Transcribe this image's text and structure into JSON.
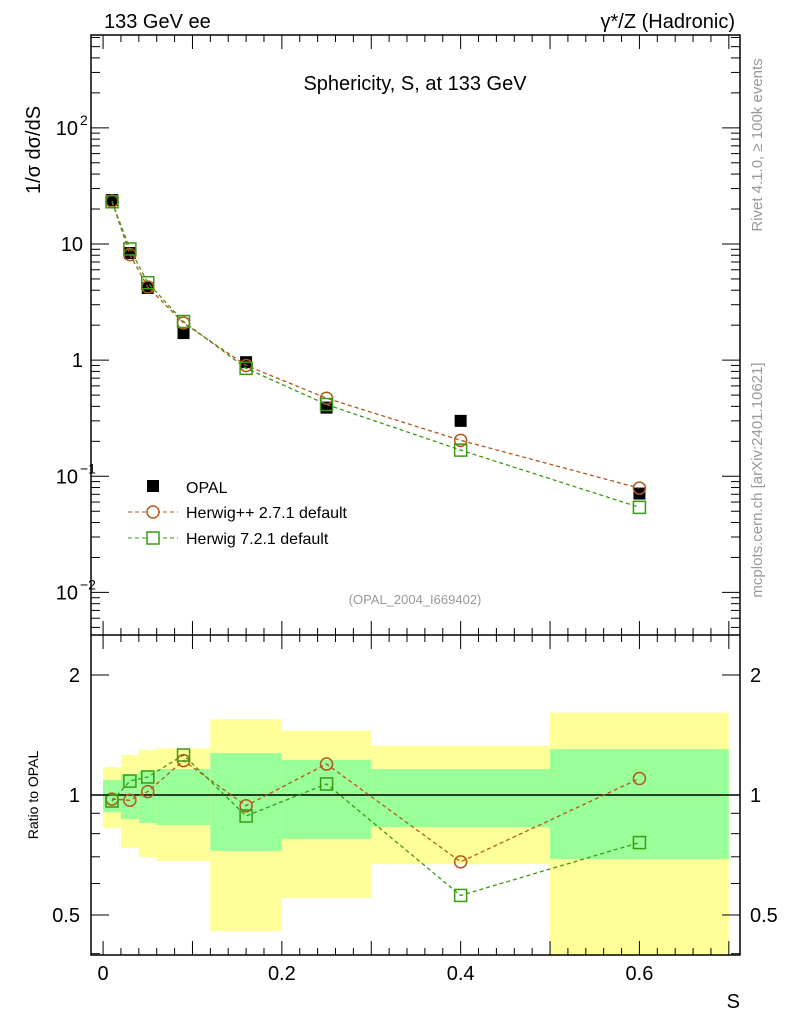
{
  "header": {
    "left": "133 GeV ee",
    "right": "γ*/Z (Hadronic)"
  },
  "side_labels": {
    "rivet": "Rivet 4.1.0, ≥ 100k events",
    "mcplots": "mcplots.cern.ch [arXiv:2401.10621]"
  },
  "chart_data": [
    {
      "type": "line",
      "title": "Sphericity, S, at 133 GeV",
      "xlabel": "S",
      "ylabel": "1/σ  dσ/dS",
      "yscale": "log",
      "xlim": [
        -0.0135,
        0.7125
      ],
      "ylim": [
        0.0043,
        630
      ],
      "yticks": [
        {
          "v": 0.01,
          "label": "10",
          "exp": "−2"
        },
        {
          "v": 0.1,
          "label": "10",
          "exp": "−1"
        },
        {
          "v": 1,
          "label": "1"
        },
        {
          "v": 10,
          "label": "10"
        },
        {
          "v": 100,
          "label": "10",
          "exp": "2"
        }
      ],
      "annotation": "(OPAL_2004_I669402)",
      "legend_position": "lower-left",
      "x": [
        0.01,
        0.03,
        0.05,
        0.09,
        0.16,
        0.25,
        0.4,
        0.6
      ],
      "series": [
        {
          "name": "OPAL",
          "color": "#000000",
          "marker": "square-filled",
          "values": [
            23.9,
            8.36,
            4.18,
            1.71,
            0.96,
            0.39,
            0.3,
            0.071
          ]
        },
        {
          "name": "Herwig++ 2.7.1 default",
          "color": "#b5561a",
          "marker": "circle-open",
          "values": [
            23.4,
            8.1,
            4.26,
            2.09,
            0.9,
            0.47,
            0.204,
            0.079
          ]
        },
        {
          "name": "Herwig 7.2.1 default",
          "color": "#3a9a12",
          "marker": "square-open",
          "values": [
            23.1,
            9.06,
            4.64,
            2.15,
            0.85,
            0.415,
            0.168,
            0.054
          ]
        }
      ]
    },
    {
      "type": "line",
      "ylabel": "Ratio to OPAL",
      "xlabel": "S",
      "yscale": "log",
      "xlim": [
        -0.0135,
        0.7125
      ],
      "ylim": [
        0.397,
        2.52
      ],
      "xticks": [
        {
          "v": 0,
          "label": "0"
        },
        {
          "v": 0.2,
          "label": "0.2"
        },
        {
          "v": 0.4,
          "label": "0.4"
        },
        {
          "v": 0.6,
          "label": "0.6"
        }
      ],
      "yticks": [
        {
          "v": 0.5,
          "label": "0.5"
        },
        {
          "v": 1,
          "label": "1"
        },
        {
          "v": 2,
          "label": "2"
        }
      ],
      "bins": [
        [
          0,
          0.02
        ],
        [
          0.02,
          0.04
        ],
        [
          0.04,
          0.06
        ],
        [
          0.06,
          0.12
        ],
        [
          0.12,
          0.2
        ],
        [
          0.2,
          0.3
        ],
        [
          0.3,
          0.5
        ],
        [
          0.5,
          0.7
        ]
      ],
      "band_outer": {
        "color": "#ffff99",
        "lo": [
          0.827,
          0.737,
          0.699,
          0.683,
          0.456,
          0.552,
          0.671,
          0.3
        ],
        "hi": [
          1.175,
          1.26,
          1.3,
          1.31,
          1.55,
          1.45,
          1.33,
          1.61
        ]
      },
      "band_inner": {
        "color": "#99ff99",
        "lo": [
          0.906,
          0.871,
          0.851,
          0.841,
          0.724,
          0.776,
          0.831,
          0.691
        ],
        "hi": [
          1.09,
          1.129,
          1.148,
          1.162,
          1.274,
          1.224,
          1.162,
          1.304
        ]
      },
      "x": [
        0.01,
        0.03,
        0.05,
        0.09,
        0.16,
        0.25,
        0.4,
        0.6
      ],
      "series": [
        {
          "name": "Herwig++ 2.7.1 default",
          "color": "#b5561a",
          "marker": "circle-open",
          "values": [
            0.977,
            0.97,
            1.02,
            1.22,
            0.94,
            1.196,
            0.68,
            1.1
          ]
        },
        {
          "name": "Herwig 7.2.1 default",
          "color": "#3a9a12",
          "marker": "square-open",
          "values": [
            0.966,
            1.084,
            1.11,
            1.26,
            0.886,
            1.066,
            0.56,
            0.76
          ]
        }
      ]
    }
  ]
}
